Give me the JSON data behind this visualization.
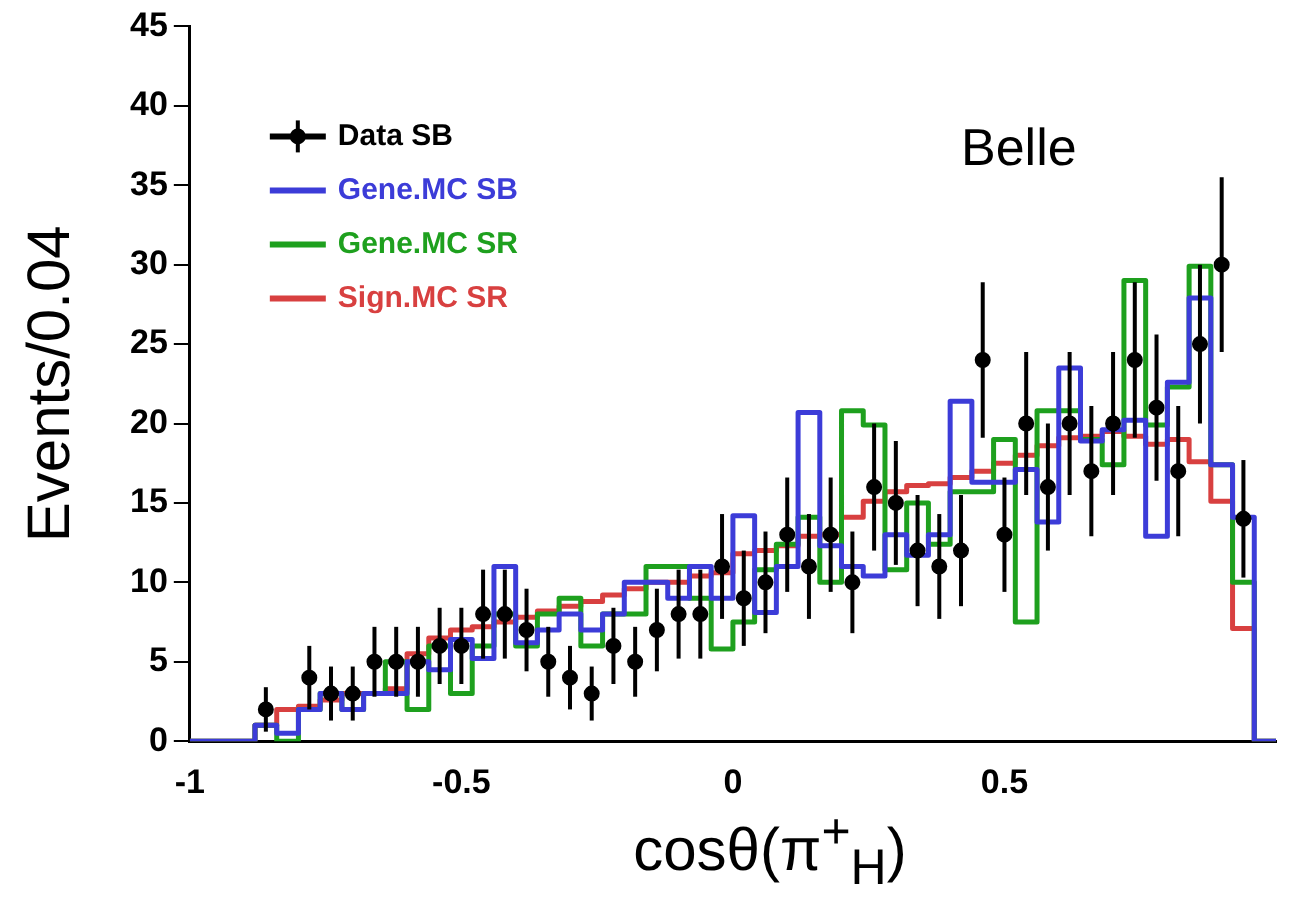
{
  "chart_data": {
    "type": "histogram",
    "xlabel": "cosθ(π$^{+}$$_{H}$)",
    "ylabel": "Events/0.04",
    "annotations": [
      "Belle"
    ],
    "bins": [
      -1,
      -0.96,
      -0.92,
      -0.88,
      -0.84,
      -0.8,
      -0.76,
      -0.72,
      -0.68,
      -0.64,
      -0.6,
      -0.56,
      -0.52,
      -0.48,
      -0.44,
      -0.4,
      -0.36,
      -0.32,
      -0.28,
      -0.24,
      -0.2,
      -0.16,
      -0.12,
      -0.08,
      -0.04,
      0,
      0.04,
      0.08,
      0.12,
      0.16,
      0.2,
      0.24,
      0.28,
      0.32,
      0.36,
      0.4,
      0.44,
      0.48,
      0.52,
      0.56,
      0.6,
      0.64,
      0.68,
      0.72,
      0.76,
      0.8,
      0.84,
      0.88,
      0.92,
      0.96,
      1
    ],
    "series": [
      {
        "name": "Data SB",
        "type": "scatter",
        "color": "#000000",
        "x": [
          -0.86,
          -0.78,
          -0.74,
          -0.7,
          -0.66,
          -0.62,
          -0.58,
          -0.54,
          -0.5,
          -0.46,
          -0.42,
          -0.38,
          -0.34,
          -0.3,
          -0.26,
          -0.22,
          -0.18,
          -0.14,
          -0.1,
          -0.06,
          -0.02,
          0.02,
          0.06,
          0.1,
          0.14,
          0.18,
          0.22,
          0.26,
          0.3,
          0.34,
          0.38,
          0.42,
          0.46,
          0.5,
          0.54,
          0.58,
          0.62,
          0.66,
          0.7,
          0.74,
          0.78,
          0.82,
          0.86,
          0.9,
          0.94
        ],
        "values": [
          2,
          4,
          3,
          3,
          5,
          5,
          5,
          6,
          6,
          8,
          8,
          7,
          5,
          4,
          3,
          6,
          5,
          7,
          8,
          8,
          11,
          9,
          10,
          13,
          11,
          13,
          10,
          16,
          15,
          12,
          11,
          12,
          24,
          13,
          20,
          16,
          20,
          17,
          20,
          24,
          21,
          17,
          25,
          30,
          14
        ],
        "errors": [
          1.4,
          2,
          1.7,
          1.7,
          2.2,
          2.2,
          2.2,
          2.4,
          2.4,
          2.8,
          2.8,
          2.6,
          2.2,
          2,
          1.7,
          2.4,
          2.2,
          2.6,
          2.8,
          2.8,
          3.3,
          3,
          3.2,
          3.6,
          3.3,
          3.6,
          3.2,
          4,
          3.9,
          3.5,
          3.3,
          3.5,
          4.9,
          3.6,
          4.5,
          4,
          4.5,
          4.1,
          4.5,
          4.9,
          4.6,
          4.1,
          5,
          5.5,
          3.7
        ]
      },
      {
        "name": "Gene.MC SB",
        "color": "#3c3cd8",
        "values": [
          0,
          0,
          0,
          1,
          0.5,
          2,
          3,
          2,
          3,
          3,
          5,
          4.5,
          6.4,
          5.2,
          11,
          6.2,
          7,
          8,
          7,
          8,
          10,
          10,
          9,
          11,
          9,
          14.2,
          8.1,
          11,
          20.7,
          12.3,
          11,
          10.4,
          13,
          11.7,
          13,
          21.4,
          16.3,
          16.3,
          17.1,
          13.8,
          23.5,
          18.9,
          19.6,
          20.2,
          12.9,
          22.6,
          27.9,
          17.4,
          14.1,
          0
        ]
      },
      {
        "name": "Gene.MC SR",
        "color": "#1ea01e",
        "values": [
          0,
          0,
          0,
          1,
          0,
          2,
          3,
          2,
          3,
          5,
          2,
          6,
          3,
          6,
          8,
          6,
          8,
          9,
          6,
          8,
          8,
          11,
          11,
          9,
          5.8,
          7.5,
          10.8,
          12.4,
          14.1,
          10,
          20.8,
          19.9,
          10.8,
          15,
          12.4,
          15.7,
          15.7,
          19,
          7.5,
          20.8,
          20.8,
          19,
          17.4,
          29,
          19.9,
          22.3,
          29.9,
          17.4,
          10,
          0
        ]
      },
      {
        "name": "Sign.MC SR",
        "color": "#d84040",
        "values": [
          0,
          0,
          0,
          1,
          2,
          2.2,
          2.6,
          3,
          3,
          3.3,
          5.5,
          6.5,
          7,
          7.2,
          7.5,
          7.8,
          8.2,
          8.5,
          8.8,
          9.2,
          9.6,
          10,
          10,
          10.4,
          10.6,
          11.8,
          12,
          12.3,
          12.9,
          13,
          14.1,
          15.1,
          15.7,
          16.1,
          16.2,
          16.6,
          17,
          17.5,
          18,
          18.6,
          19.1,
          19.2,
          19.5,
          19.2,
          18.7,
          19,
          17.6,
          15.1,
          7.1,
          0
        ]
      }
    ],
    "xlim": [
      -1,
      1
    ],
    "xticks": [
      -1,
      -0.5,
      0,
      0.5
    ],
    "ylim": [
      0,
      45
    ],
    "yticks": [
      0,
      5,
      10,
      15,
      20,
      25,
      30,
      35,
      40,
      45
    ],
    "legend": "top left",
    "marker": "circle",
    "grid": false
  }
}
